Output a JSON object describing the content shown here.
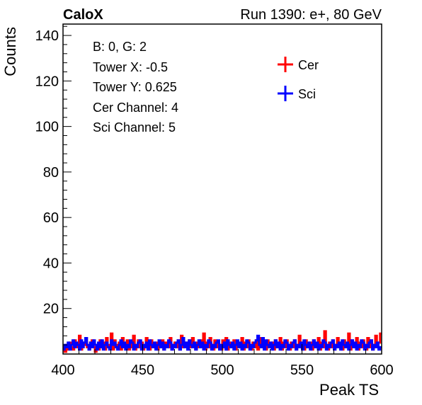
{
  "header": {
    "experiment": "CaloX",
    "run_info": "Run 1390: e+, 80 GeV"
  },
  "info_box": {
    "lines": [
      "B: 0, G: 2",
      "Tower X: -0.5",
      "Tower Y: 0.625",
      "Cer Channel: 4",
      "Sci Channel: 5"
    ]
  },
  "chart_data": {
    "type": "histogram",
    "xlabel": "Peak TS",
    "ylabel": "Counts",
    "xlim": [
      400,
      600
    ],
    "ylim": [
      0,
      145
    ],
    "xticks": [
      400,
      450,
      500,
      550,
      600
    ],
    "yticks": [
      20,
      40,
      60,
      80,
      100,
      120,
      140
    ],
    "bin_width": 1,
    "legend_position": "top-right",
    "series": [
      {
        "name": "Cer",
        "color": "#ff0000",
        "x_start": 400,
        "values": [
          3,
          1,
          4,
          2,
          5,
          3,
          2,
          6,
          4,
          3,
          8,
          2,
          5,
          4,
          7,
          3,
          2,
          5,
          6,
          3,
          1,
          4,
          2,
          6,
          3,
          5,
          2,
          7,
          4,
          3,
          9,
          2,
          6,
          4,
          3,
          5,
          2,
          7,
          3,
          4,
          6,
          2,
          5,
          3,
          8,
          2,
          4,
          6,
          3,
          5,
          2,
          4,
          7,
          3,
          2,
          6,
          4,
          3,
          5,
          2,
          4,
          3,
          6,
          2,
          5,
          4,
          3,
          7,
          2,
          4,
          5,
          3,
          6,
          2,
          8,
          3,
          4,
          5,
          2,
          6,
          3,
          7,
          4,
          2,
          5,
          3,
          6,
          4,
          9,
          2,
          5,
          3,
          7,
          4,
          2,
          6,
          3,
          5,
          4,
          2,
          6,
          3,
          7,
          2,
          5,
          4,
          3,
          6,
          2,
          5,
          3,
          4,
          7,
          2,
          5,
          3,
          6,
          4,
          2,
          5,
          3,
          6,
          2,
          4,
          7,
          3,
          5,
          2,
          6,
          4,
          3,
          5,
          2,
          6,
          3,
          4,
          7,
          2,
          5,
          3,
          6,
          4,
          2,
          5,
          3,
          6,
          2,
          4,
          8,
          3,
          5,
          2,
          6,
          4,
          3,
          5,
          2,
          6,
          3,
          4,
          7,
          2,
          5,
          3,
          10,
          4,
          2,
          5,
          3,
          6,
          2,
          4,
          7,
          3,
          5,
          2,
          6,
          4,
          3,
          9,
          2,
          6,
          3,
          4,
          7,
          2,
          5,
          3,
          6,
          4,
          2,
          7,
          3,
          6,
          2,
          4,
          8,
          3,
          5,
          9
        ]
      },
      {
        "name": "Sci",
        "color": "#0000ff",
        "x_start": 400,
        "values": [
          2,
          4,
          3,
          5,
          2,
          4,
          6,
          3,
          5,
          4,
          2,
          6,
          3,
          5,
          7,
          4,
          2,
          5,
          3,
          6,
          4,
          2,
          5,
          3,
          6,
          2,
          4,
          5,
          3,
          2,
          6,
          4,
          5,
          3,
          2,
          4,
          6,
          3,
          5,
          2,
          4,
          3,
          6,
          5,
          2,
          4,
          3,
          5,
          6,
          2,
          4,
          3,
          5,
          2,
          6,
          4,
          3,
          5,
          2,
          4,
          6,
          3,
          5,
          2,
          4,
          3,
          6,
          5,
          2,
          4,
          3,
          5,
          6,
          2,
          4,
          7,
          3,
          5,
          2,
          6,
          4,
          3,
          5,
          2,
          4,
          6,
          3,
          5,
          2,
          4,
          3,
          6,
          5,
          2,
          4,
          3,
          5,
          6,
          2,
          4,
          3,
          5,
          2,
          6,
          4,
          3,
          5,
          2,
          4,
          6,
          3,
          5,
          2,
          4,
          3,
          6,
          5,
          2,
          4,
          3,
          5,
          6,
          8,
          4,
          3,
          7,
          2,
          6,
          4,
          3,
          5,
          2,
          4,
          6,
          3,
          5,
          2,
          4,
          3,
          6,
          5,
          2,
          4,
          3,
          5,
          6,
          2,
          4,
          3,
          5,
          2,
          6,
          4,
          3,
          5,
          2,
          4,
          6,
          3,
          5,
          2,
          4,
          3,
          6,
          5,
          2,
          4,
          3,
          5,
          6,
          2,
          4,
          3,
          5,
          2,
          6,
          4,
          3,
          5,
          2,
          4,
          6,
          3,
          5,
          2,
          4,
          3,
          6,
          5,
          2,
          4,
          3,
          5,
          6,
          2,
          4,
          3,
          5,
          2,
          3
        ]
      }
    ]
  }
}
